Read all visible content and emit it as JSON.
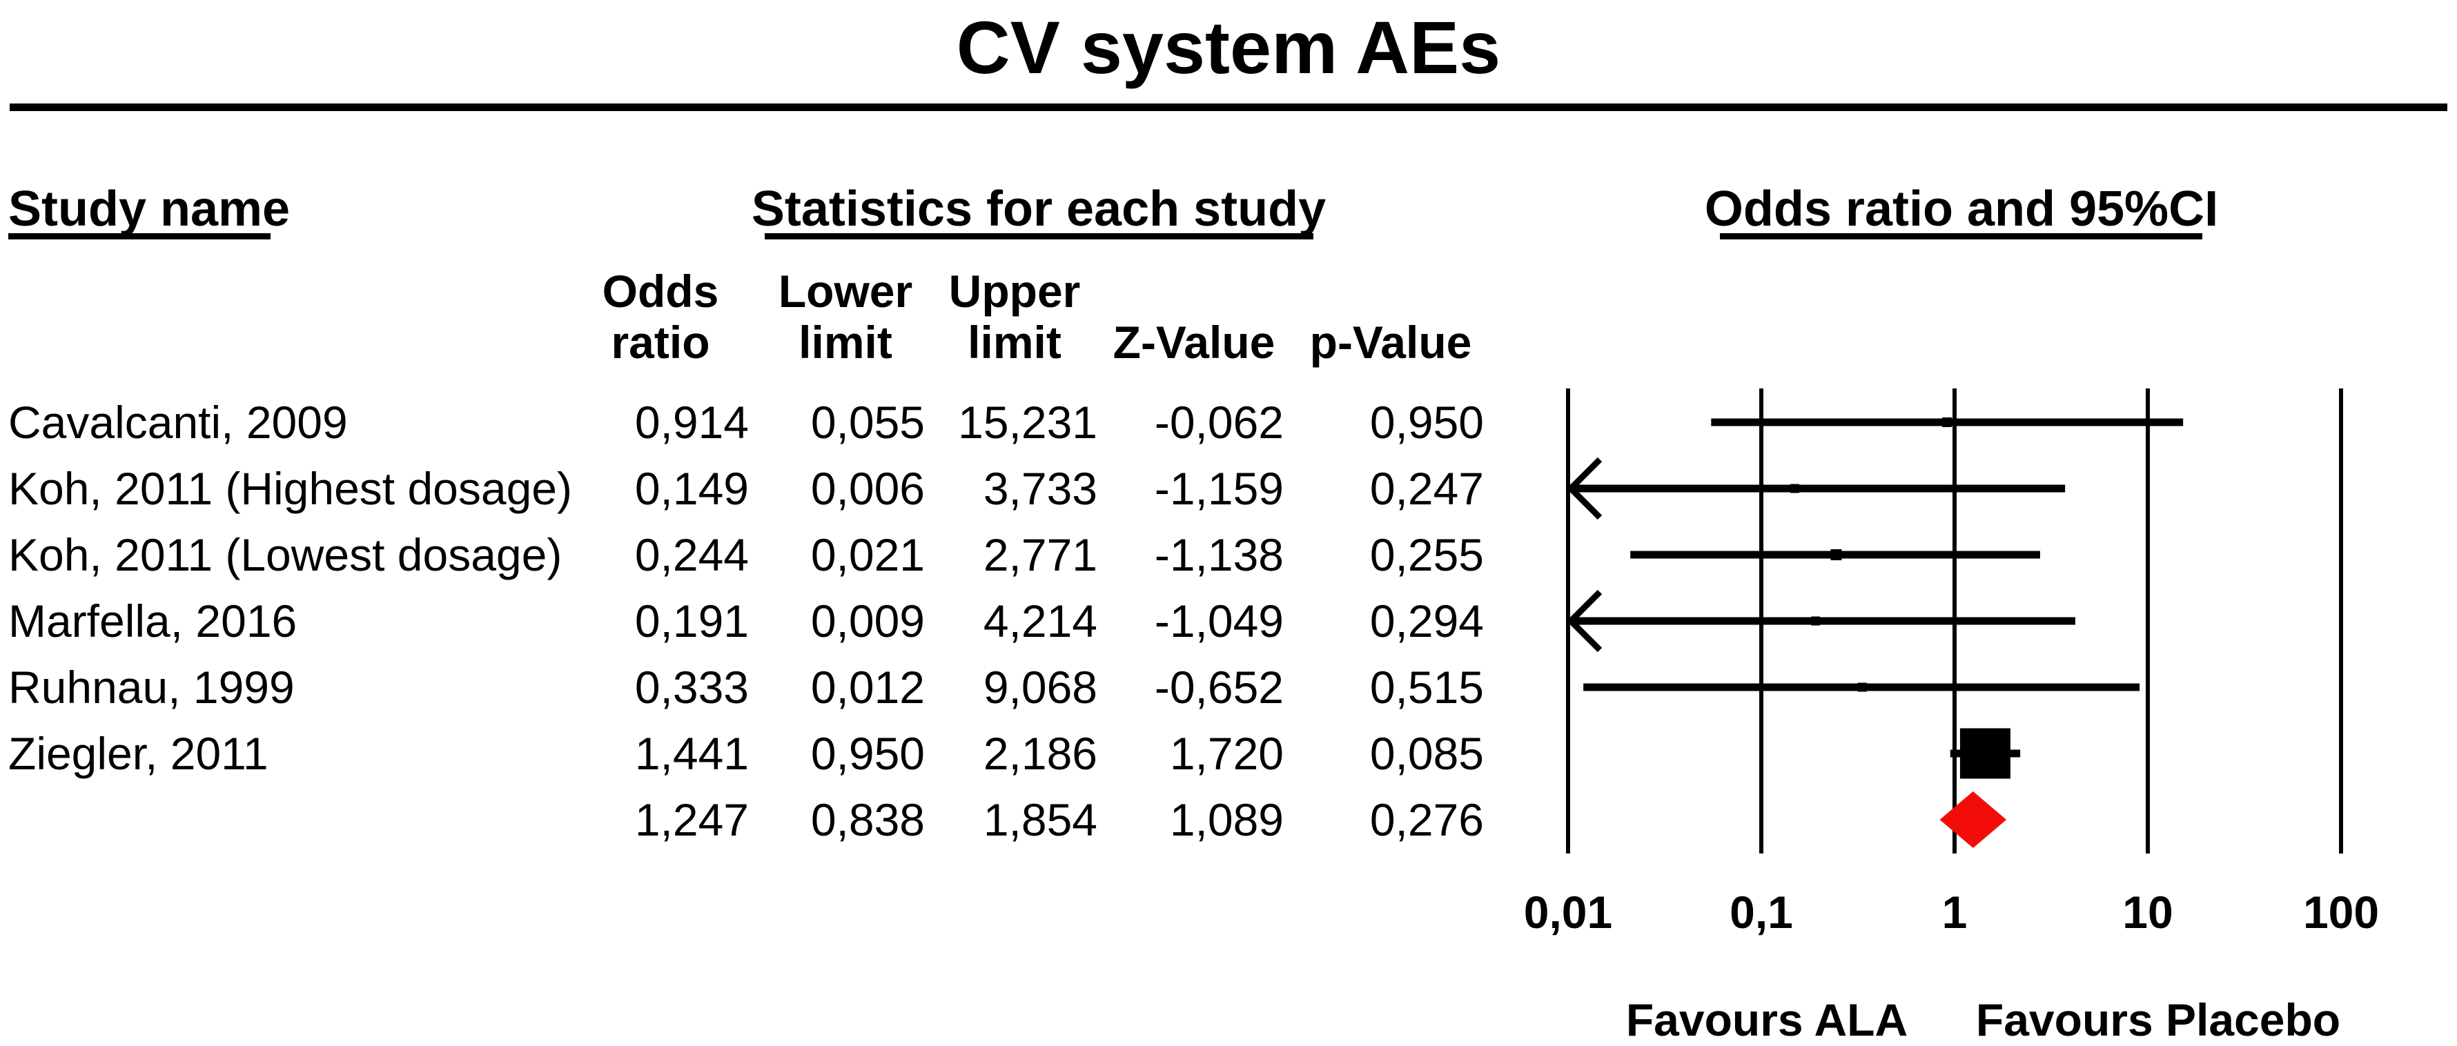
{
  "title": "CV system AEs",
  "columns": {
    "study": "Study name",
    "stats_group": "Statistics for each study",
    "plot_group": "Odds ratio and 95%CI",
    "sub": [
      [
        "Odds",
        "ratio"
      ],
      [
        "Lower",
        "limit"
      ],
      [
        "Upper",
        "limit"
      ],
      [
        "Z-Value"
      ],
      [
        "p-Value"
      ]
    ]
  },
  "rows": [
    {
      "name": "Cavalcanti, 2009",
      "or": "0,914",
      "lower": "0,055",
      "upper": "15,231",
      "z": "-0,062",
      "p": "0,950"
    },
    {
      "name": "Koh, 2011 (Highest dosage)",
      "or": "0,149",
      "lower": "0,006",
      "upper": "3,733",
      "z": "-1,159",
      "p": "0,247"
    },
    {
      "name": "Koh, 2011 (Lowest dosage)",
      "or": "0,244",
      "lower": "0,021",
      "upper": "2,771",
      "z": "-1,138",
      "p": "0,255"
    },
    {
      "name": "Marfella, 2016",
      "or": "0,191",
      "lower": "0,009",
      "upper": "4,214",
      "z": "-1,049",
      "p": "0,294"
    },
    {
      "name": "Ruhnau, 1999",
      "or": "0,333",
      "lower": "0,012",
      "upper": "9,068",
      "z": "-0,652",
      "p": "0,515"
    },
    {
      "name": "Ziegler, 2011",
      "or": "1,441",
      "lower": "0,950",
      "upper": "2,186",
      "z": "1,720",
      "p": "0,085"
    },
    {
      "name": "",
      "or": "1,247",
      "lower": "0,838",
      "upper": "1,854",
      "z": "1,089",
      "p": "0,276"
    }
  ],
  "chart_data": {
    "type": "forest",
    "title": "CV system AEs",
    "x_scale": "log10",
    "x_range": [
      0.01,
      100
    ],
    "x_ticks": {
      "values": [
        0.01,
        0.1,
        1,
        10,
        100
      ],
      "labels": [
        "0,01",
        "0,1",
        "1",
        "10",
        "100"
      ]
    },
    "studies": [
      {
        "name": "Cavalcanti, 2009",
        "or": 0.914,
        "ci": [
          0.055,
          15.231
        ],
        "z": -0.062,
        "p": 0.95,
        "marker_px": 14,
        "left_arrow": false
      },
      {
        "name": "Koh, 2011 (Highest dosage)",
        "or": 0.149,
        "ci": [
          0.006,
          3.733
        ],
        "z": -1.159,
        "p": 0.247,
        "marker_px": 13,
        "left_arrow": true
      },
      {
        "name": "Koh, 2011 (Lowest dosage)",
        "or": 0.244,
        "ci": [
          0.021,
          2.771
        ],
        "z": -1.138,
        "p": 0.255,
        "marker_px": 16,
        "left_arrow": false
      },
      {
        "name": "Marfella, 2016",
        "or": 0.191,
        "ci": [
          0.009,
          4.214
        ],
        "z": -1.049,
        "p": 0.294,
        "marker_px": 13,
        "left_arrow": true
      },
      {
        "name": "Ruhnau, 1999",
        "or": 0.333,
        "ci": [
          0.012,
          9.068
        ],
        "z": -0.652,
        "p": 0.515,
        "marker_px": 13,
        "left_arrow": false
      },
      {
        "name": "Ziegler, 2011",
        "or": 1.441,
        "ci": [
          0.95,
          2.186
        ],
        "z": 1.72,
        "p": 0.085,
        "marker_px": 73,
        "left_arrow": false
      }
    ],
    "overall": {
      "or": 1.247,
      "ci": [
        0.838,
        1.854
      ],
      "z": 1.089,
      "p": 0.276
    },
    "footer": {
      "left": "Favours ALA",
      "right": "Favours Placebo"
    },
    "colors": {
      "study_marker": "#000000",
      "line": "#000000",
      "overall_diamond": "#F20D0A"
    },
    "legend_position": "none",
    "grid": "vertical-ticks-only"
  }
}
